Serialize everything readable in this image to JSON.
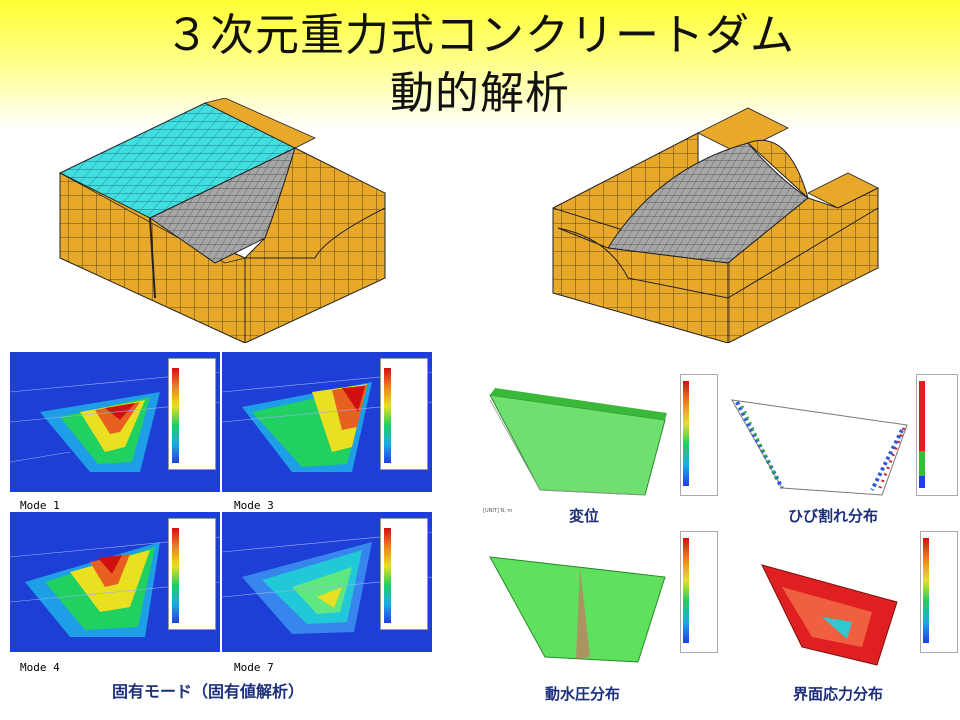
{
  "title": {
    "line1": "３次元重力式コンクリートダム",
    "line2": "動的解析"
  },
  "modes": {
    "mode1": "Mode 1",
    "mode3": "Mode 3",
    "mode4": "Mode 4",
    "mode7": "Mode 7",
    "caption": "固有モード（固有値解析）"
  },
  "results": {
    "displacement": "変位",
    "crack": "ひび割れ分布",
    "hydro": "動水圧分布",
    "interface": "界面応力分布"
  },
  "colors": {
    "concrete": "#e8a92a",
    "water": "#3fdde0",
    "mesh_grey": "#a6a6a6",
    "plot_bg": "#1d3fd6",
    "caption": "#1c2f7a"
  },
  "icons": [
    "dam-model-left-icon",
    "dam-model-right-icon",
    "axis-triad-icon"
  ]
}
